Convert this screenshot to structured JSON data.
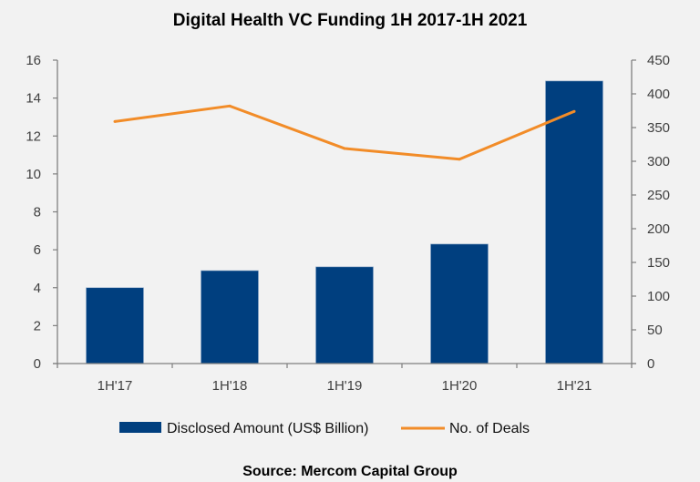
{
  "chart_data": {
    "type": "bar",
    "title": "Digital Health VC Funding 1H 2017-1H 2021",
    "categories": [
      "1H'17",
      "1H'18",
      "1H'19",
      "1H'20",
      "1H'21"
    ],
    "series": [
      {
        "name": "Disclosed Amount (US$ Billion)",
        "type": "bar",
        "axis": "left",
        "color": "#003f7f",
        "values": [
          4.0,
          4.9,
          5.1,
          6.3,
          14.9
        ]
      },
      {
        "name": "No. of Deals",
        "type": "line",
        "axis": "right",
        "color": "#f28c28",
        "values": [
          359,
          382,
          319,
          303,
          374
        ]
      }
    ],
    "y_left": {
      "ylim": [
        0,
        16
      ],
      "ticks": [
        "0",
        "2",
        "4",
        "6",
        "8",
        "10",
        "12",
        "14",
        "16"
      ]
    },
    "y_right": {
      "ylim": [
        0,
        450
      ],
      "ticks": [
        "0",
        "50",
        "100",
        "150",
        "200",
        "250",
        "300",
        "350",
        "400",
        "450"
      ]
    },
    "xlabel": "",
    "ylabel": "",
    "grid": false,
    "legend": {
      "position": "bottom",
      "entries": [
        "Disclosed Amount (US$ Billion)",
        "No. of Deals"
      ]
    },
    "source": "Source: Mercom Capital Group"
  }
}
